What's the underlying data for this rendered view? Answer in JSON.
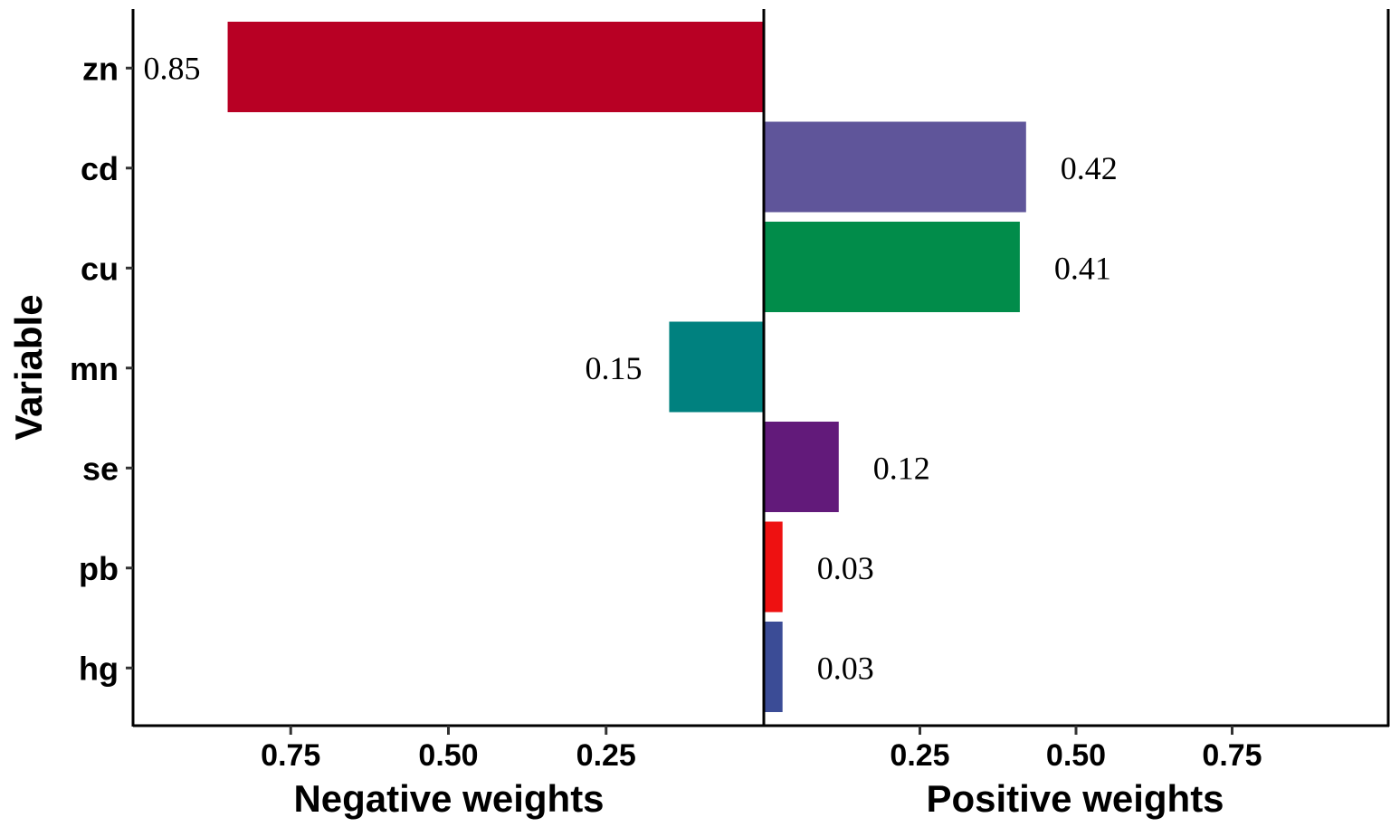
{
  "chart_data": {
    "type": "bar",
    "orientation": "horizontal-diverging",
    "ylabel": "Variable",
    "categories": [
      "zn",
      "cd",
      "cu",
      "mn",
      "se",
      "pb",
      "hg"
    ],
    "values": [
      -0.85,
      0.42,
      0.41,
      -0.15,
      0.12,
      0.03,
      0.03
    ],
    "data_labels": [
      "0.85",
      "0.42",
      "0.41",
      "0.15",
      "0.12",
      "0.03",
      "0.03"
    ],
    "colors": [
      "#B80024",
      "#5F559A",
      "#018C4A",
      "#00817F",
      "#621A7A",
      "#EE1111",
      "#3B4C96"
    ],
    "negative_panel": {
      "xlabel": "Negative weights",
      "ticks": [
        0.75,
        0.5,
        0.25
      ],
      "tick_labels": [
        "0.75",
        "0.50",
        "0.25"
      ],
      "xlim": [
        1.0,
        0
      ]
    },
    "positive_panel": {
      "xlabel": "Positive weights",
      "ticks": [
        0.25,
        0.5,
        0.75
      ],
      "tick_labels": [
        "0.25",
        "0.50",
        "0.75"
      ],
      "xlim": [
        0,
        1.0
      ]
    },
    "grid": false
  }
}
